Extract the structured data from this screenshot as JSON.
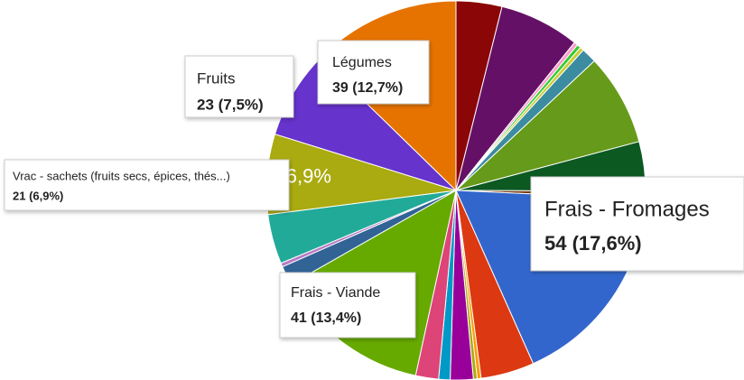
{
  "chart_data": {
    "type": "pie",
    "categories": [
      null,
      null,
      null,
      null,
      null,
      null,
      null,
      null,
      null,
      "Frais - Fromages",
      null,
      null,
      null,
      null,
      null,
      null,
      "Frais - Viande",
      null,
      null,
      null,
      "Vrac - sachets (fruits secs, épices, thés...)",
      "Fruits",
      "Légumes"
    ],
    "values": [
      12,
      21,
      1,
      1,
      1,
      4,
      24,
      13,
      2,
      54,
      14,
      1,
      1,
      6,
      3,
      6,
      41,
      5,
      1,
      13,
      21,
      23,
      39
    ],
    "colors": [
      "#8b0707",
      "#651067",
      "#ff99cc",
      "#33cc33",
      "#cccc33",
      "#3b8ba1",
      "#669a1a",
      "#0c5922",
      "#7a3b0f",
      "#3366cc",
      "#dc3912",
      "#ff9900",
      "#aaaa11",
      "#990099",
      "#0099c6",
      "#dd4477",
      "#66aa00",
      "#316395",
      "#b77ac2",
      "#22aa99",
      "#aaaa11",
      "#6633cc",
      "#e67300"
    ],
    "value_labels": [
      null,
      null,
      null,
      null,
      null,
      null,
      null,
      null,
      null,
      "54 (17,6%)",
      null,
      null,
      null,
      null,
      null,
      null,
      "41 (13,4%)",
      null,
      null,
      null,
      "21 (6,9%)",
      "23 (7,5%)",
      "39 (12,7%)"
    ],
    "slice_labels": [
      null,
      null,
      null,
      null,
      null,
      null,
      null,
      null,
      null,
      null,
      null,
      null,
      null,
      null,
      null,
      null,
      null,
      null,
      null,
      null,
      "6,9%",
      null,
      null
    ]
  }
}
